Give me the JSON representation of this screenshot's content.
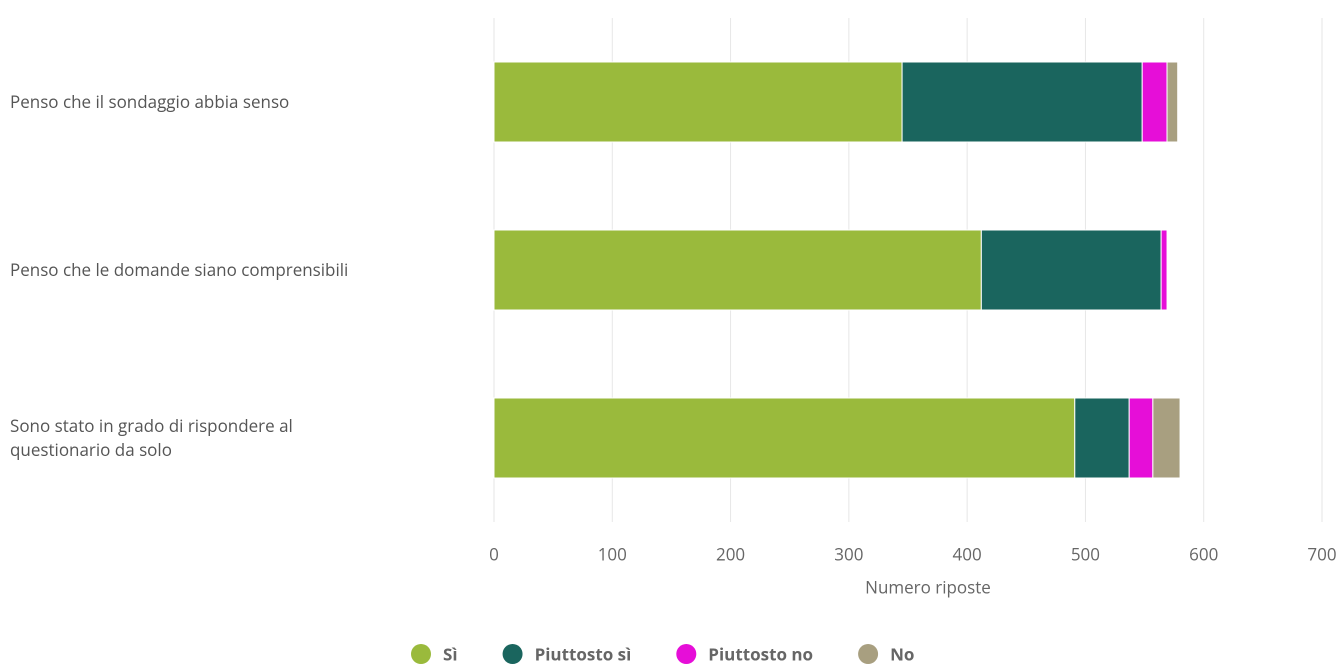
{
  "chart_data": {
    "type": "stacked_barh",
    "categories": [
      "Penso che il sondaggio abbia senso",
      "Penso che le domande siano comprensibili",
      "Sono stato in grado di rispondere al questionario da solo"
    ],
    "series": [
      {
        "name": "Sì",
        "color": "#9aba3c",
        "values": [
          345,
          412,
          491
        ]
      },
      {
        "name": "Piuttosto sì",
        "color": "#1a655e",
        "values": [
          203,
          152,
          46
        ]
      },
      {
        "name": "Piuttosto no",
        "color": "#e60ed8",
        "values": [
          21,
          5,
          20
        ]
      },
      {
        "name": "No",
        "color": "#a89f80",
        "values": [
          9,
          0,
          23
        ]
      }
    ],
    "xlabel": "Numero riposte",
    "xlim": [
      0,
      700
    ],
    "xticks": [
      0,
      100,
      200,
      300,
      400,
      500,
      600,
      700
    ],
    "grid": true,
    "legend": "bottom"
  }
}
